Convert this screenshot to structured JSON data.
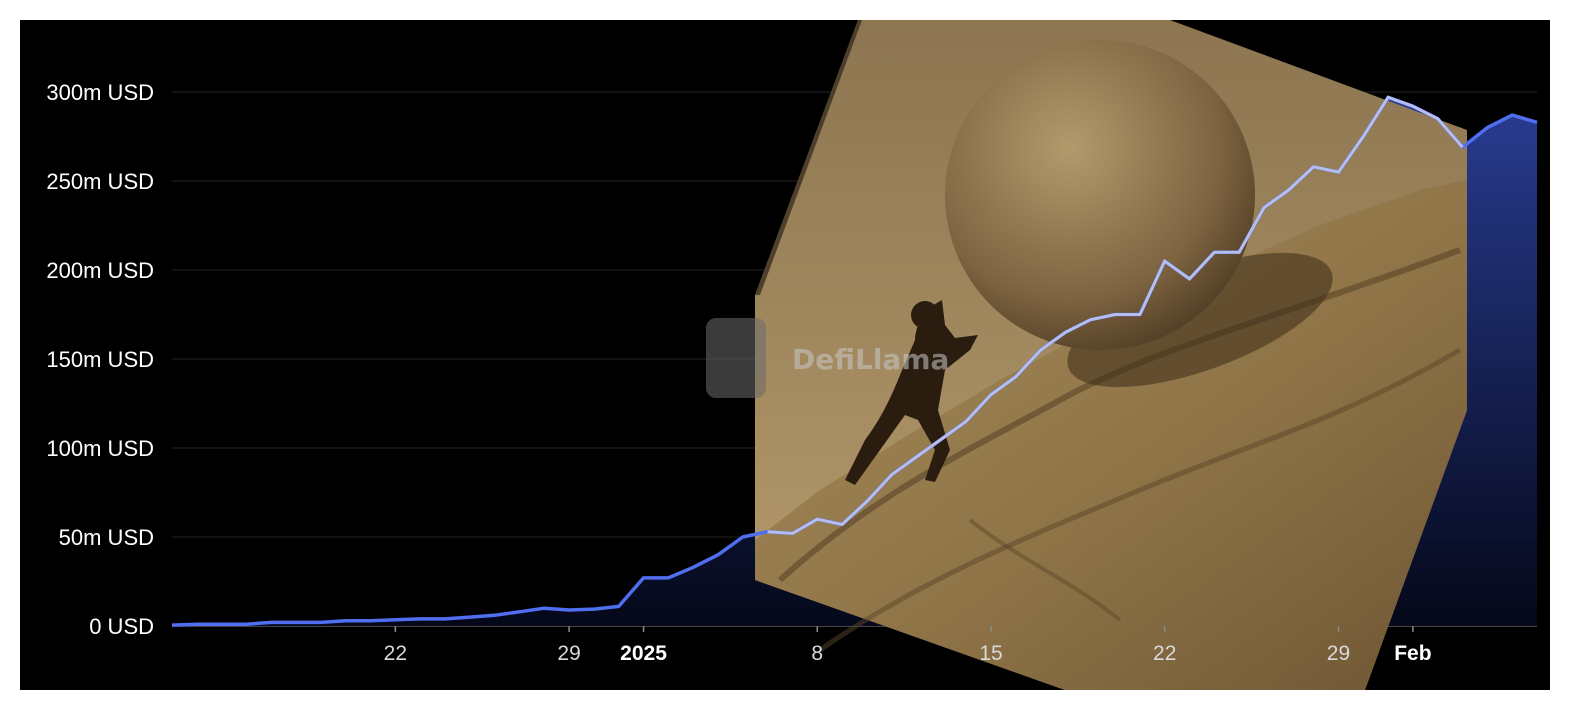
{
  "chart_data": {
    "type": "area",
    "title": "",
    "xlabel": "",
    "ylabel": "",
    "ylim": [
      0,
      340
    ],
    "y_unit": "m USD",
    "y_ticks": [
      "0 USD",
      "50m USD",
      "100m USD",
      "150m USD",
      "200m USD",
      "250m USD",
      "300m USD"
    ],
    "x_ticks": [
      {
        "label": "22",
        "bold": false
      },
      {
        "label": "29",
        "bold": false
      },
      {
        "label": "2025",
        "bold": true
      },
      {
        "label": "8",
        "bold": false
      },
      {
        "label": "15",
        "bold": false
      },
      {
        "label": "22",
        "bold": false
      },
      {
        "label": "29",
        "bold": false
      },
      {
        "label": "Feb",
        "bold": true
      }
    ],
    "x": [
      "2024-12-13",
      "2024-12-14",
      "2024-12-15",
      "2024-12-16",
      "2024-12-17",
      "2024-12-18",
      "2024-12-19",
      "2024-12-20",
      "2024-12-21",
      "2024-12-22",
      "2024-12-23",
      "2024-12-24",
      "2024-12-25",
      "2024-12-26",
      "2024-12-27",
      "2024-12-28",
      "2024-12-29",
      "2024-12-30",
      "2024-12-31",
      "2025-01-01",
      "2025-01-02",
      "2025-01-03",
      "2025-01-04",
      "2025-01-05",
      "2025-01-06",
      "2025-01-07",
      "2025-01-08",
      "2025-01-09",
      "2025-01-10",
      "2025-01-11",
      "2025-01-12",
      "2025-01-13",
      "2025-01-14",
      "2025-01-15",
      "2025-01-16",
      "2025-01-17",
      "2025-01-18",
      "2025-01-19",
      "2025-01-20",
      "2025-01-21",
      "2025-01-22",
      "2025-01-23",
      "2025-01-24",
      "2025-01-25",
      "2025-01-26",
      "2025-01-27",
      "2025-01-28",
      "2025-01-29",
      "2025-01-30",
      "2025-01-31",
      "2025-02-01",
      "2025-02-02",
      "2025-02-03",
      "2025-02-04",
      "2025-02-05",
      "2025-02-06"
    ],
    "series": [
      {
        "values": [
          0.5,
          1,
          1,
          1,
          2,
          2,
          2,
          3,
          3,
          3.5,
          4,
          4,
          5,
          6,
          8,
          10,
          9,
          9.5,
          11,
          27,
          27,
          33,
          40,
          50,
          53,
          52,
          60,
          57,
          70,
          85,
          95,
          105,
          115,
          130,
          140,
          155,
          165,
          172,
          175,
          175,
          205,
          195,
          210,
          210,
          235,
          245,
          258,
          255,
          275,
          297,
          292,
          285,
          269,
          280,
          287,
          283
        ]
      }
    ],
    "colors": {
      "line": "#4f6ef0",
      "area_top": "#2b3f99",
      "area_bottom": "#05081a",
      "grid": "#232323",
      "background": "#000000"
    },
    "watermark": "DefiLlama",
    "overlay_image": "sisyphus-pushing-boulder-meme"
  }
}
